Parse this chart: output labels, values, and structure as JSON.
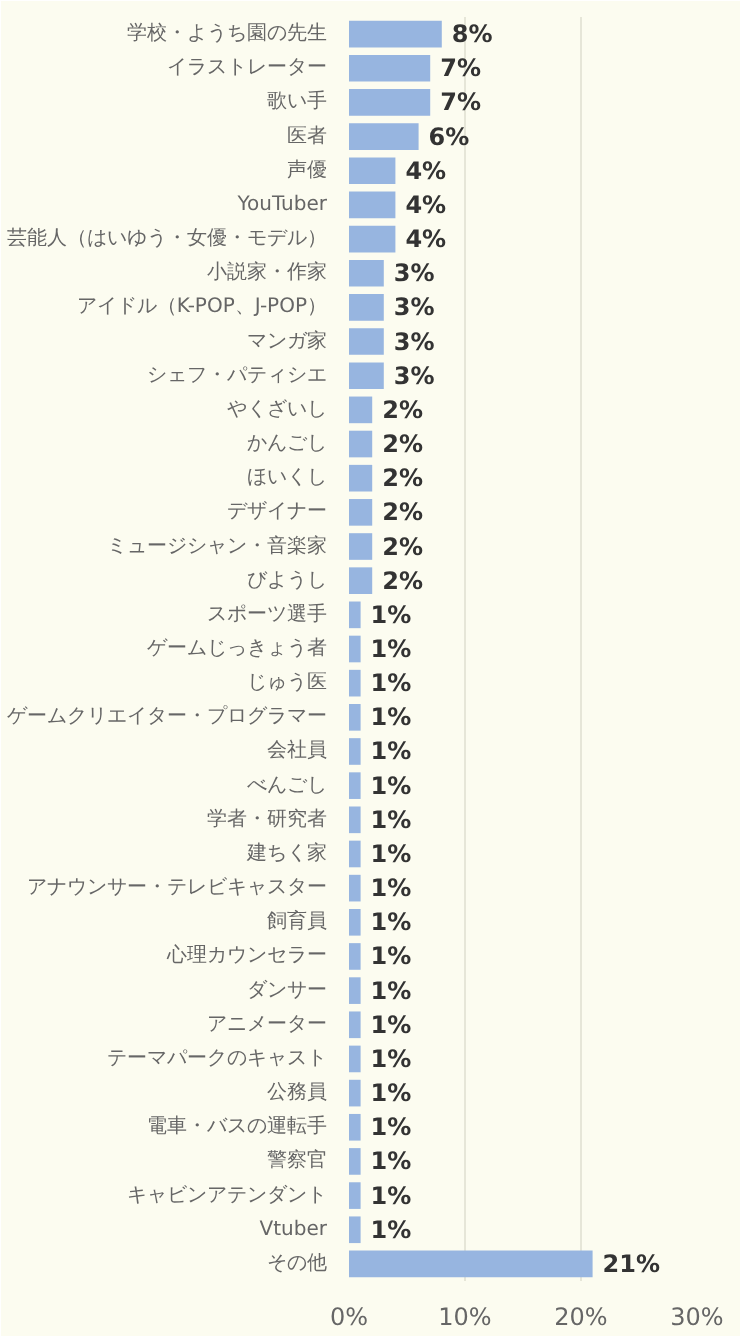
{
  "chart_data": {
    "type": "bar",
    "orientation": "horizontal",
    "categories": [
      "学校・ようち園の先生",
      "イラストレーター",
      "歌い手",
      "医者",
      "声優",
      "YouTuber",
      "芸能人（はいゆう・女優・モデル）",
      "小説家・作家",
      "アイドル（K-POP、J-POP）",
      "マンガ家",
      "シェフ・パティシエ",
      "やくざいし",
      "かんごし",
      "ほいくし",
      "デザイナー",
      "ミュージシャン・音楽家",
      "びようし",
      "スポーツ選手",
      "ゲームじっきょう者",
      "じゅう医",
      "ゲームクリエイター・プログラマー",
      "会社員",
      "べんごし",
      "学者・研究者",
      "建ちく家",
      "アナウンサー・テレビキャスター",
      "飼育員",
      "心理カウンセラー",
      "ダンサー",
      "アニメーター",
      "テーマパークのキャスト",
      "公務員",
      "電車・バスの運転手",
      "警察官",
      "キャビンアテンダント",
      "Vtuber",
      "その他"
    ],
    "values": [
      8,
      7,
      7,
      6,
      4,
      4,
      4,
      3,
      3,
      3,
      3,
      2,
      2,
      2,
      2,
      2,
      2,
      1,
      1,
      1,
      1,
      1,
      1,
      1,
      1,
      1,
      1,
      1,
      1,
      1,
      1,
      1,
      1,
      1,
      1,
      1,
      21
    ],
    "color": "#97b5e0",
    "xlim": [
      0,
      30
    ],
    "xticks": [
      {
        "value": 0,
        "label": "0%"
      },
      {
        "value": 10,
        "label": "10%"
      },
      {
        "value": 20,
        "label": "20%"
      },
      {
        "value": 30,
        "label": "30%"
      }
    ],
    "value_labels": [
      "8%",
      "7%",
      "7%",
      "6%",
      "4%",
      "4%",
      "4%",
      "3%",
      "3%",
      "3%",
      "3%",
      "2%",
      "2%",
      "2%",
      "2%",
      "2%",
      "2%",
      "1%",
      "1%",
      "1%",
      "1%",
      "1%",
      "1%",
      "1%",
      "1%",
      "1%",
      "1%",
      "1%",
      "1%",
      "1%",
      "1%",
      "1%",
      "1%",
      "1%",
      "1%",
      "1%",
      "21%"
    ],
    "grid": "x"
  }
}
